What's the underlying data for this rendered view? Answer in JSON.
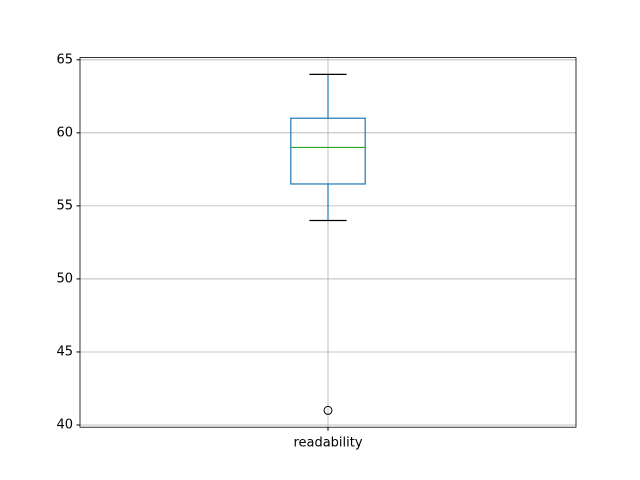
{
  "chart_data": {
    "type": "box",
    "categories": [
      "readability"
    ],
    "boxes": [
      {
        "whislo": 54,
        "q1": 56.5,
        "med": 59,
        "q3": 61,
        "whishi": 64,
        "fliers": [
          41
        ]
      }
    ],
    "color": "#1f77b4",
    "median_color": "#2ca02c",
    "cap_color": "#000000",
    "ylim": [
      39.85,
      65.15
    ],
    "yticks": [
      40,
      45,
      50,
      55,
      60,
      65
    ],
    "grid": true
  }
}
